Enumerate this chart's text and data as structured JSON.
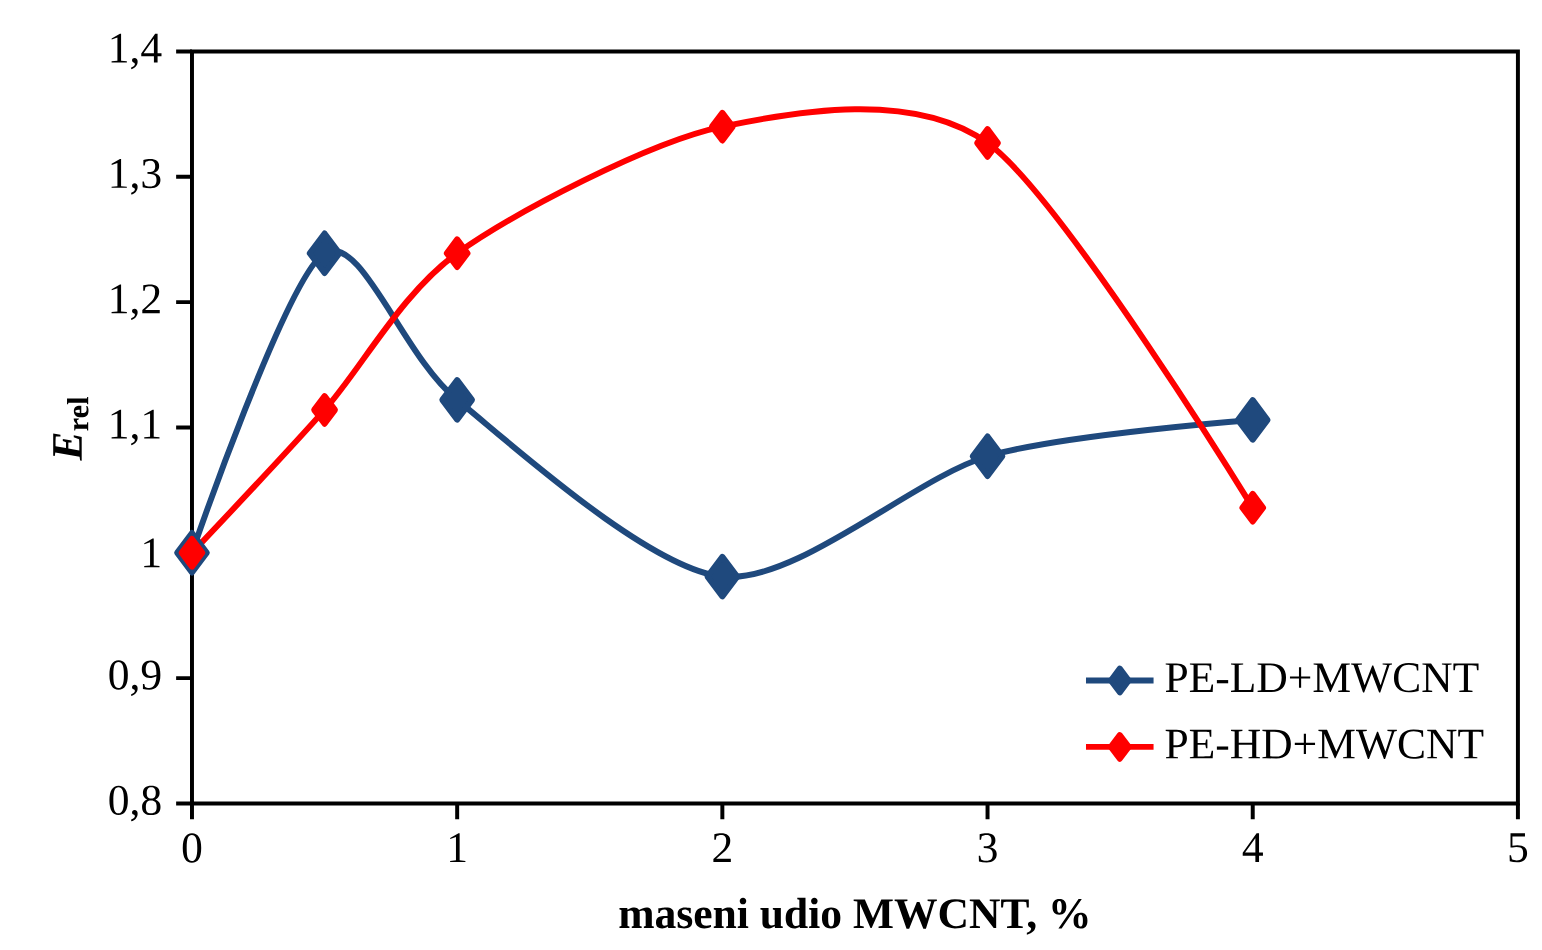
{
  "chart_data": {
    "type": "line",
    "xlabel": "maseni udio MWCNT, %",
    "ylabel": "*E*$_{rel}$",
    "x": [
      0,
      0.5,
      1,
      2,
      3,
      4
    ],
    "series": [
      {
        "name": "PE-LD+MWCNT",
        "color": "#1f497d",
        "values": [
          1.0,
          1.239,
          1.122,
          0.981,
          1.077,
          1.106
        ]
      },
      {
        "name": "PE-HD+MWCNT",
        "color": "#ff0000",
        "values": [
          1.0,
          1.114,
          1.239,
          1.34,
          1.327,
          1.036
        ]
      }
    ],
    "xlim": [
      0,
      5
    ],
    "xticks": [
      0,
      1,
      2,
      3,
      4,
      5
    ],
    "ylim": [
      0.8,
      1.4
    ],
    "yticks": [
      {
        "value": 0.8,
        "label": "0,8"
      },
      {
        "value": 0.9,
        "label": "0,9"
      },
      1,
      {
        "value": 1.1,
        "label": "1,1"
      },
      {
        "value": 1.2,
        "label": "1,2"
      },
      {
        "value": 1.3,
        "label": "1,3"
      },
      {
        "value": 1.4,
        "label": "1,4"
      }
    ],
    "marker": "diamond",
    "legend": "bottom right",
    "grid": false
  }
}
